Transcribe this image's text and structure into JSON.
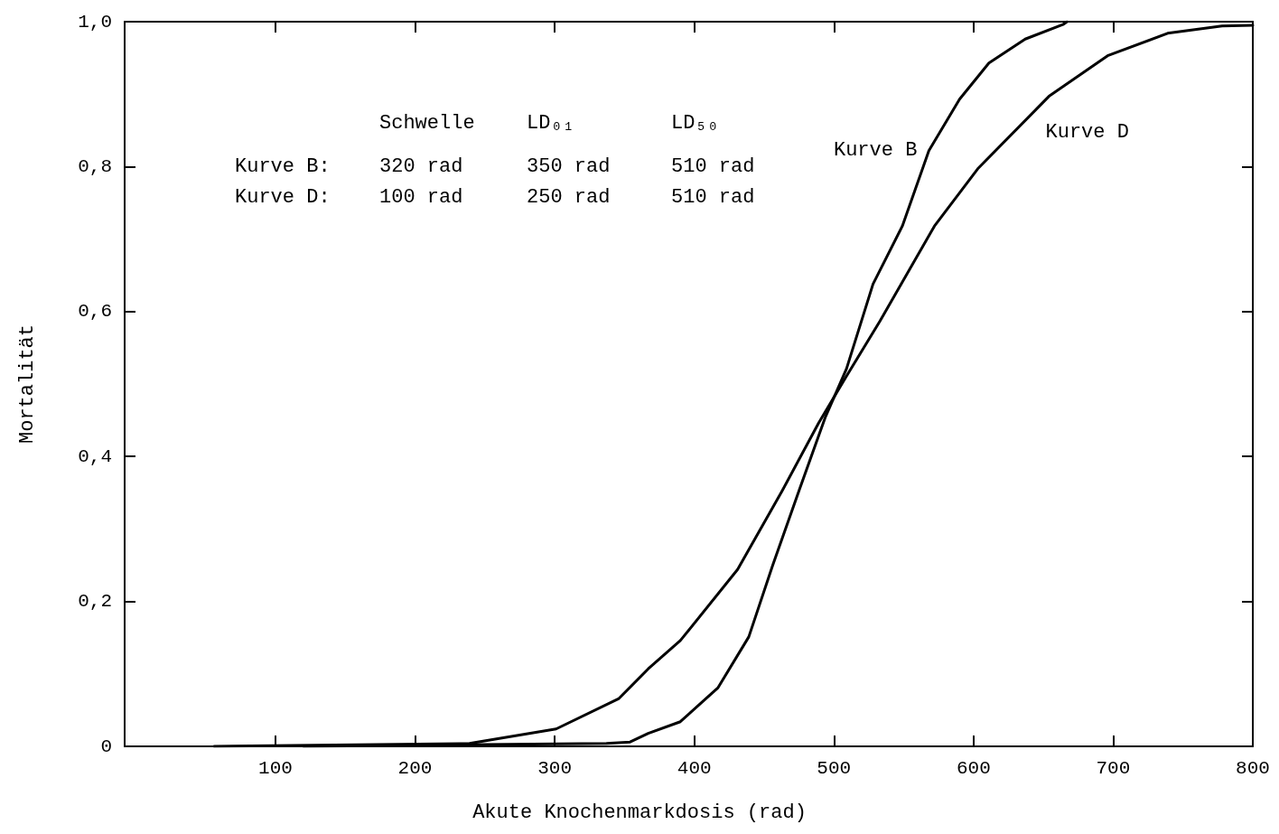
{
  "chart_data": {
    "type": "line",
    "xlabel": "Akute Knochenmarkdosis (rad)",
    "ylabel": "Mortalität",
    "xlim": [
      -8,
      800
    ],
    "xticks": [
      100,
      200,
      300,
      400,
      500,
      600,
      700,
      800
    ],
    "ylim": [
      0,
      1
    ],
    "yticks": [
      0,
      {
        "value": 0.2,
        "label": "0,2"
      },
      {
        "value": 0.4,
        "label": "0,4"
      },
      {
        "value": 0.6,
        "label": "0,6"
      },
      {
        "value": 0.8,
        "label": "0,8"
      },
      {
        "value": 1,
        "label": "1,0"
      }
    ],
    "grid": false,
    "legend": false,
    "marker": "none",
    "line_style": "solid",
    "series": [
      {
        "name": "Kurve B",
        "color": "#000000",
        "x": [
          120,
          337,
          354,
          367,
          390,
          417,
          439,
          456,
          475,
          494,
          509,
          528,
          549,
          568,
          590,
          611,
          637,
          664,
          667
        ],
        "values": [
          0,
          0.004,
          0.006,
          0.018,
          0.034,
          0.081,
          0.151,
          0.249,
          0.353,
          0.455,
          0.521,
          0.638,
          0.718,
          0.822,
          0.893,
          0.943,
          0.976,
          0.996,
          1
        ]
      },
      {
        "name": "Kurve D",
        "color": "#000000",
        "x": [
          56,
          239,
          301,
          346,
          367,
          390,
          431,
          463,
          489,
          509,
          533,
          572,
          603,
          654,
          696,
          739,
          778,
          800
        ],
        "values": [
          0,
          0.004,
          0.024,
          0.066,
          0.107,
          0.146,
          0.244,
          0.353,
          0.446,
          0.511,
          0.587,
          0.718,
          0.797,
          0.897,
          0.953,
          0.984,
          0.994,
          0.995
        ]
      }
    ],
    "annotations": [
      "Schwelle",
      "LD₀₁",
      "LD₅₀",
      "Kurve B:",
      "320 rad",
      "350 rad",
      "510 rad",
      "Kurve D:",
      "100 rad",
      "250 rad",
      "510 rad"
    ]
  }
}
